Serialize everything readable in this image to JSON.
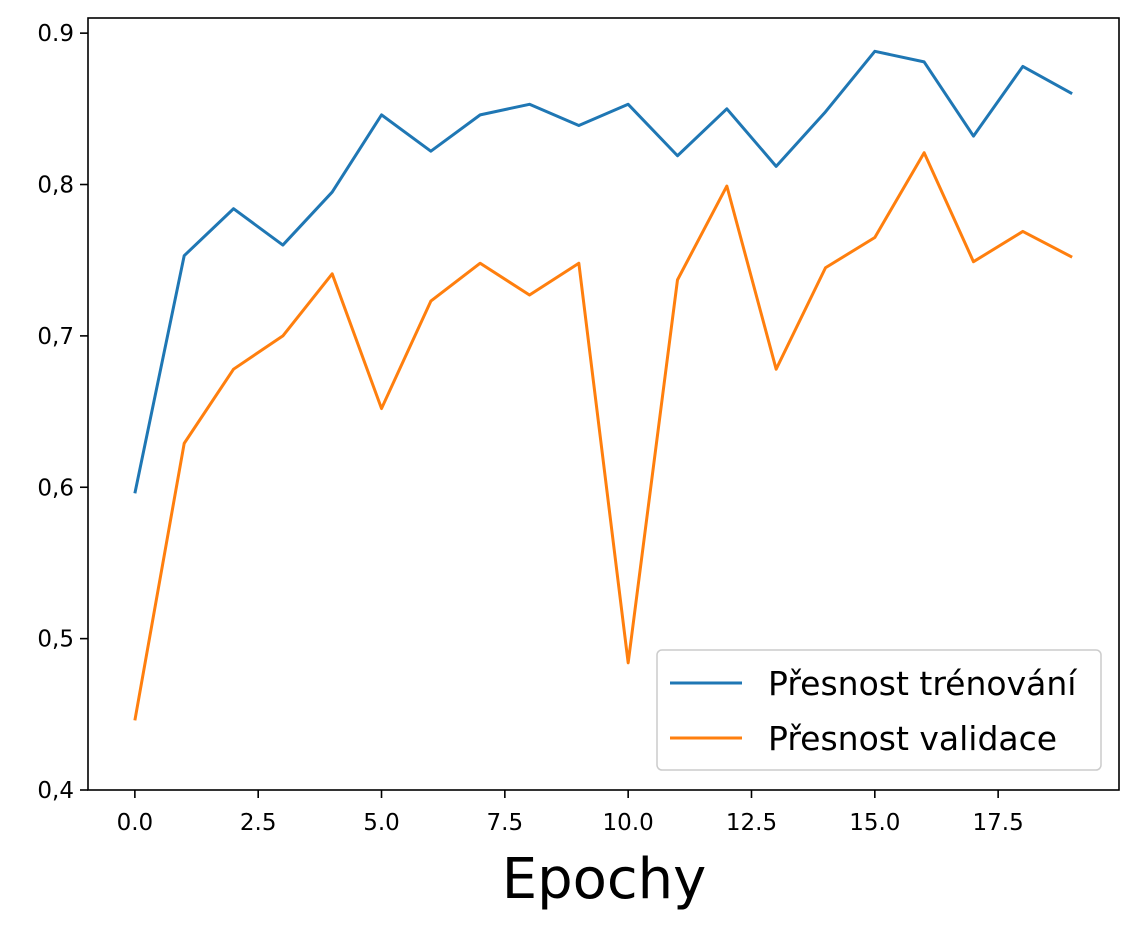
{
  "chart_data": {
    "type": "line",
    "title": "",
    "xlabel": "Epochy",
    "ylabel": "",
    "x": [
      0,
      1,
      2,
      3,
      4,
      5,
      6,
      7,
      8,
      9,
      10,
      11,
      12,
      13,
      14,
      15,
      16,
      17,
      18,
      19
    ],
    "xlim": [
      -0.95,
      19.95
    ],
    "ylim": [
      0.4,
      0.91
    ],
    "x_ticks": [
      0,
      2.5,
      5,
      7.5,
      10,
      12.5,
      15,
      17.5
    ],
    "x_tick_labels": [
      "0.0",
      "2.5",
      "5.0",
      "7.5",
      "10.0",
      "12.5",
      "15.0",
      "17.5"
    ],
    "y_ticks": [
      0.4,
      0.5,
      0.6,
      0.7,
      0.8,
      0.9
    ],
    "y_tick_labels": [
      "0,4",
      "0,5",
      "0,6",
      "0,7",
      "0,8",
      "0.9"
    ],
    "grid": false,
    "legend_position": "bottom-right",
    "series": [
      {
        "name": "Přesnost trénování",
        "color": "#1f77b4",
        "values": [
          0.596,
          0.753,
          0.784,
          0.76,
          0.795,
          0.846,
          0.822,
          0.846,
          0.853,
          0.839,
          0.853,
          0.819,
          0.85,
          0.812,
          0.848,
          0.888,
          0.881,
          0.832,
          0.878,
          0.86
        ]
      },
      {
        "name": "Přesnost validace",
        "color": "#ff7f0e",
        "values": [
          0.446,
          0.629,
          0.678,
          0.7,
          0.741,
          0.652,
          0.723,
          0.748,
          0.727,
          0.748,
          0.484,
          0.737,
          0.799,
          0.678,
          0.745,
          0.765,
          0.821,
          0.749,
          0.769,
          0.752
        ]
      }
    ]
  }
}
